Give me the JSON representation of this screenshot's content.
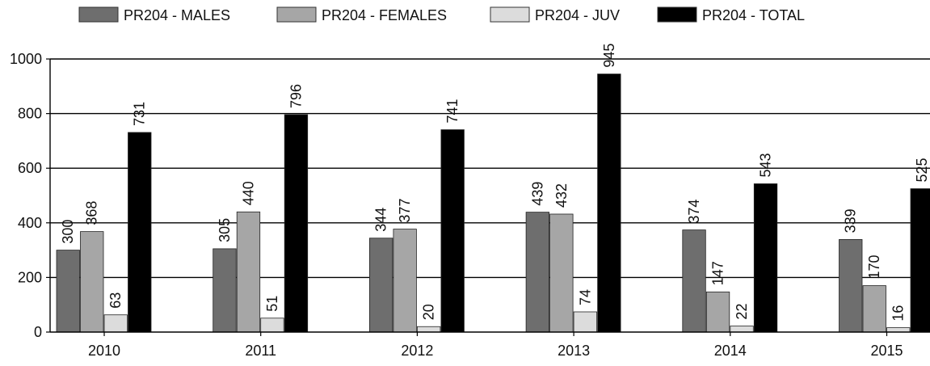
{
  "chart_data": {
    "type": "bar",
    "categories": [
      "2010",
      "2011",
      "2012",
      "2013",
      "2014",
      "2015"
    ],
    "series": [
      {
        "name": "PR204 - MALES",
        "color": "#6e6e6e",
        "values": [
          300,
          305,
          344,
          439,
          374,
          339
        ]
      },
      {
        "name": "PR204 - FEMALES",
        "color": "#a6a6a6",
        "values": [
          368,
          440,
          377,
          432,
          147,
          170
        ]
      },
      {
        "name": "PR204 - JUV",
        "color": "#dcdcdc",
        "values": [
          63,
          51,
          20,
          74,
          22,
          16
        ]
      },
      {
        "name": "PR204 - TOTAL",
        "color": "#000000",
        "values": [
          731,
          796,
          741,
          945,
          543,
          525
        ]
      }
    ],
    "ylim": [
      0,
      1000
    ],
    "yticks": [
      0,
      200,
      400,
      600,
      800,
      1000
    ],
    "grid": true,
    "legend_position": "top",
    "title": "",
    "xlabel": "",
    "ylabel": ""
  }
}
